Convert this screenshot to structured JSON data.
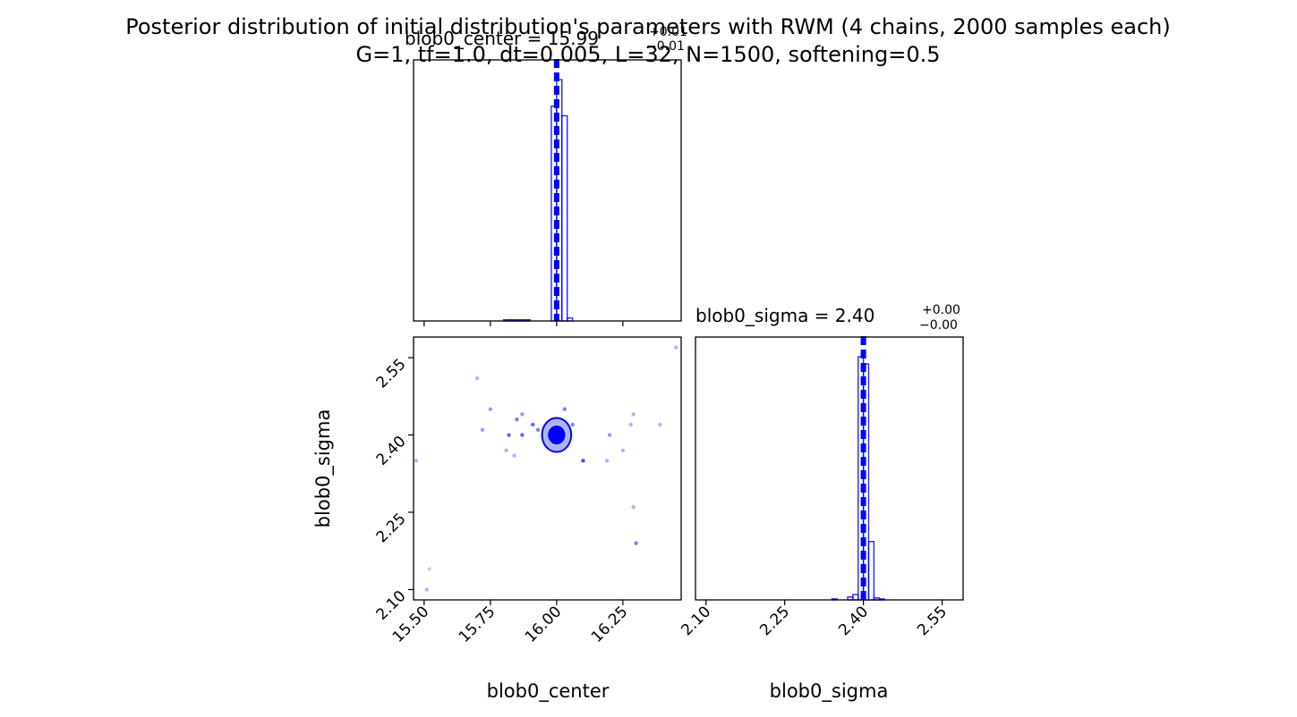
{
  "figure": {
    "title_line1": "Posterior distribution of initial distribution's parameters with RWM (4 chains, 2000 samples each)",
    "title_line2": "G=1, tf=1.0, dt=0.005, L=32, N=1500, softening=0.5"
  },
  "panel_titles": {
    "center": {
      "prefix": "blob0_center = ",
      "value": "15.99",
      "plus": "+0.01",
      "minus": "−0.01"
    },
    "sigma": {
      "prefix": "blob0_sigma = ",
      "value": "2.40",
      "plus": "+0.00",
      "minus": "−0.00"
    }
  },
  "colors": {
    "series": "#0000ff",
    "axis": "#000000"
  },
  "chart_data": [
    {
      "type": "bar",
      "panel": "marginal-center",
      "xlim": [
        15.46,
        16.47
      ],
      "xticks": [
        15.5,
        15.75,
        16.0,
        16.25
      ],
      "bin_width": 0.02,
      "bins": [
        {
          "x": 15.8,
          "v": 0.005
        },
        {
          "x": 15.82,
          "v": 0.005
        },
        {
          "x": 15.84,
          "v": 0.005
        },
        {
          "x": 15.86,
          "v": 0.005
        },
        {
          "x": 15.88,
          "v": 0.005
        },
        {
          "x": 15.98,
          "v": 0.89
        },
        {
          "x": 16.0,
          "v": 1.0
        },
        {
          "x": 16.02,
          "v": 0.85
        },
        {
          "x": 16.04,
          "v": 0.012
        }
      ],
      "truth": 16.0
    },
    {
      "type": "scatter",
      "panel": "joint",
      "xlim": [
        15.46,
        16.47
      ],
      "ylim": [
        2.08,
        2.59
      ],
      "xticks": [
        15.5,
        15.75,
        16.0,
        16.25
      ],
      "yticks": [
        2.1,
        2.25,
        2.4,
        2.55
      ],
      "xlabel": "blob0_center",
      "ylabel": "blob0_sigma",
      "contour_center": [
        16.0,
        2.4
      ],
      "contour_inner": [
        0.03,
        0.017
      ],
      "contour_outer": [
        0.055,
        0.033
      ],
      "points": [
        {
          "x": 15.47,
          "y": 2.35,
          "a": 0.3
        },
        {
          "x": 15.52,
          "y": 2.14,
          "a": 0.2
        },
        {
          "x": 15.51,
          "y": 2.1,
          "a": 0.3
        },
        {
          "x": 15.7,
          "y": 2.51,
          "a": 0.3
        },
        {
          "x": 15.72,
          "y": 2.41,
          "a": 0.4
        },
        {
          "x": 15.75,
          "y": 2.45,
          "a": 0.4
        },
        {
          "x": 15.81,
          "y": 2.37,
          "a": 0.3
        },
        {
          "x": 15.82,
          "y": 2.4,
          "a": 0.6
        },
        {
          "x": 15.84,
          "y": 2.36,
          "a": 0.3
        },
        {
          "x": 15.85,
          "y": 2.43,
          "a": 0.5
        },
        {
          "x": 15.87,
          "y": 2.44,
          "a": 0.4
        },
        {
          "x": 15.87,
          "y": 2.4,
          "a": 0.6
        },
        {
          "x": 15.91,
          "y": 2.42,
          "a": 0.6
        },
        {
          "x": 15.93,
          "y": 2.41,
          "a": 0.5
        },
        {
          "x": 16.06,
          "y": 2.42,
          "a": 0.5
        },
        {
          "x": 16.03,
          "y": 2.45,
          "a": 0.5
        },
        {
          "x": 16.1,
          "y": 2.35,
          "a": 0.7
        },
        {
          "x": 16.19,
          "y": 2.35,
          "a": 0.3
        },
        {
          "x": 16.2,
          "y": 2.4,
          "a": 0.4
        },
        {
          "x": 16.25,
          "y": 2.37,
          "a": 0.3
        },
        {
          "x": 16.28,
          "y": 2.42,
          "a": 0.3
        },
        {
          "x": 16.29,
          "y": 2.44,
          "a": 0.3
        },
        {
          "x": 16.29,
          "y": 2.26,
          "a": 0.3
        },
        {
          "x": 16.3,
          "y": 2.19,
          "a": 0.5
        },
        {
          "x": 16.39,
          "y": 2.42,
          "a": 0.3
        },
        {
          "x": 16.45,
          "y": 2.57,
          "a": 0.3
        }
      ],
      "truth": [
        16.0,
        2.4
      ]
    },
    {
      "type": "bar",
      "panel": "marginal-sigma",
      "xlim": [
        2.08,
        2.59
      ],
      "xticks": [
        2.1,
        2.25,
        2.4,
        2.55
      ],
      "xlabel": "blob0_sigma",
      "bin_width": 0.01,
      "bins": [
        {
          "x": 2.34,
          "v": 0.004
        },
        {
          "x": 2.37,
          "v": 0.012
        },
        {
          "x": 2.38,
          "v": 0.022
        },
        {
          "x": 2.39,
          "v": 1.0
        },
        {
          "x": 2.4,
          "v": 0.97
        },
        {
          "x": 2.41,
          "v": 0.24
        },
        {
          "x": 2.42,
          "v": 0.008
        },
        {
          "x": 2.43,
          "v": 0.004
        }
      ],
      "truth": 2.4
    }
  ]
}
